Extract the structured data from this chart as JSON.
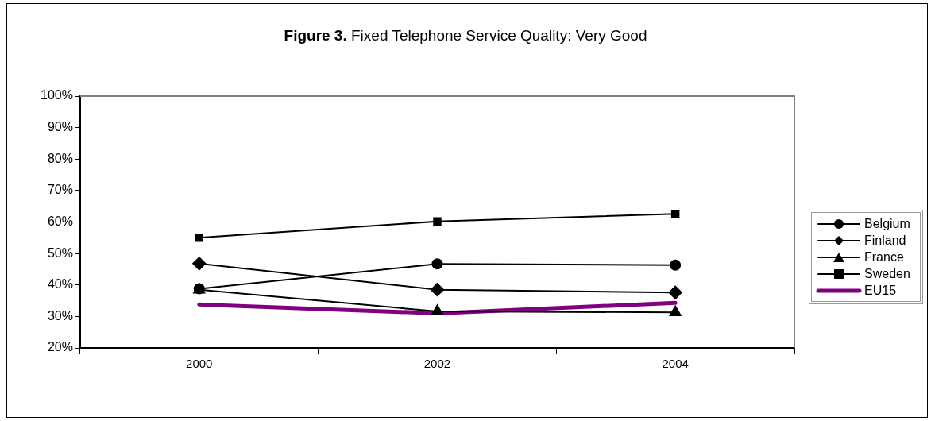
{
  "chart_data": {
    "type": "line",
    "title": "Figure 3. Fixed Telephone Service Quality: Very Good",
    "categories": [
      "2000",
      "2002",
      "2004"
    ],
    "series": [
      {
        "name": "Belgium",
        "color": "#000000",
        "marker": "circle",
        "values": [
          38.8,
          46.7,
          46.3
        ]
      },
      {
        "name": "Finland",
        "color": "#000000",
        "marker": "diamond",
        "values": [
          46.8,
          38.5,
          37.6
        ]
      },
      {
        "name": "France",
        "color": "#000000",
        "marker": "triangle",
        "values": [
          38.5,
          31.6,
          31.3
        ]
      },
      {
        "name": "Sweden",
        "color": "#000000",
        "marker": "square",
        "values": [
          55.0,
          60.2,
          62.6
        ]
      },
      {
        "name": "EU15",
        "color": "#800080",
        "marker": "none",
        "values": [
          33.8,
          31.0,
          34.3
        ]
      }
    ],
    "ylim": [
      20,
      100
    ],
    "yticks": [
      {
        "value": 20,
        "label": "20%"
      },
      {
        "value": 30,
        "label": "30%"
      },
      {
        "value": 40,
        "label": "40%"
      },
      {
        "value": 50,
        "label": "50%"
      },
      {
        "value": 60,
        "label": "60%"
      },
      {
        "value": 70,
        "label": "70%"
      },
      {
        "value": 80,
        "label": "80%"
      },
      {
        "value": 90,
        "label": "90%"
      },
      {
        "value": 100,
        "label": "100%"
      }
    ],
    "grid": false,
    "legend": "right",
    "line_style": "solid"
  }
}
